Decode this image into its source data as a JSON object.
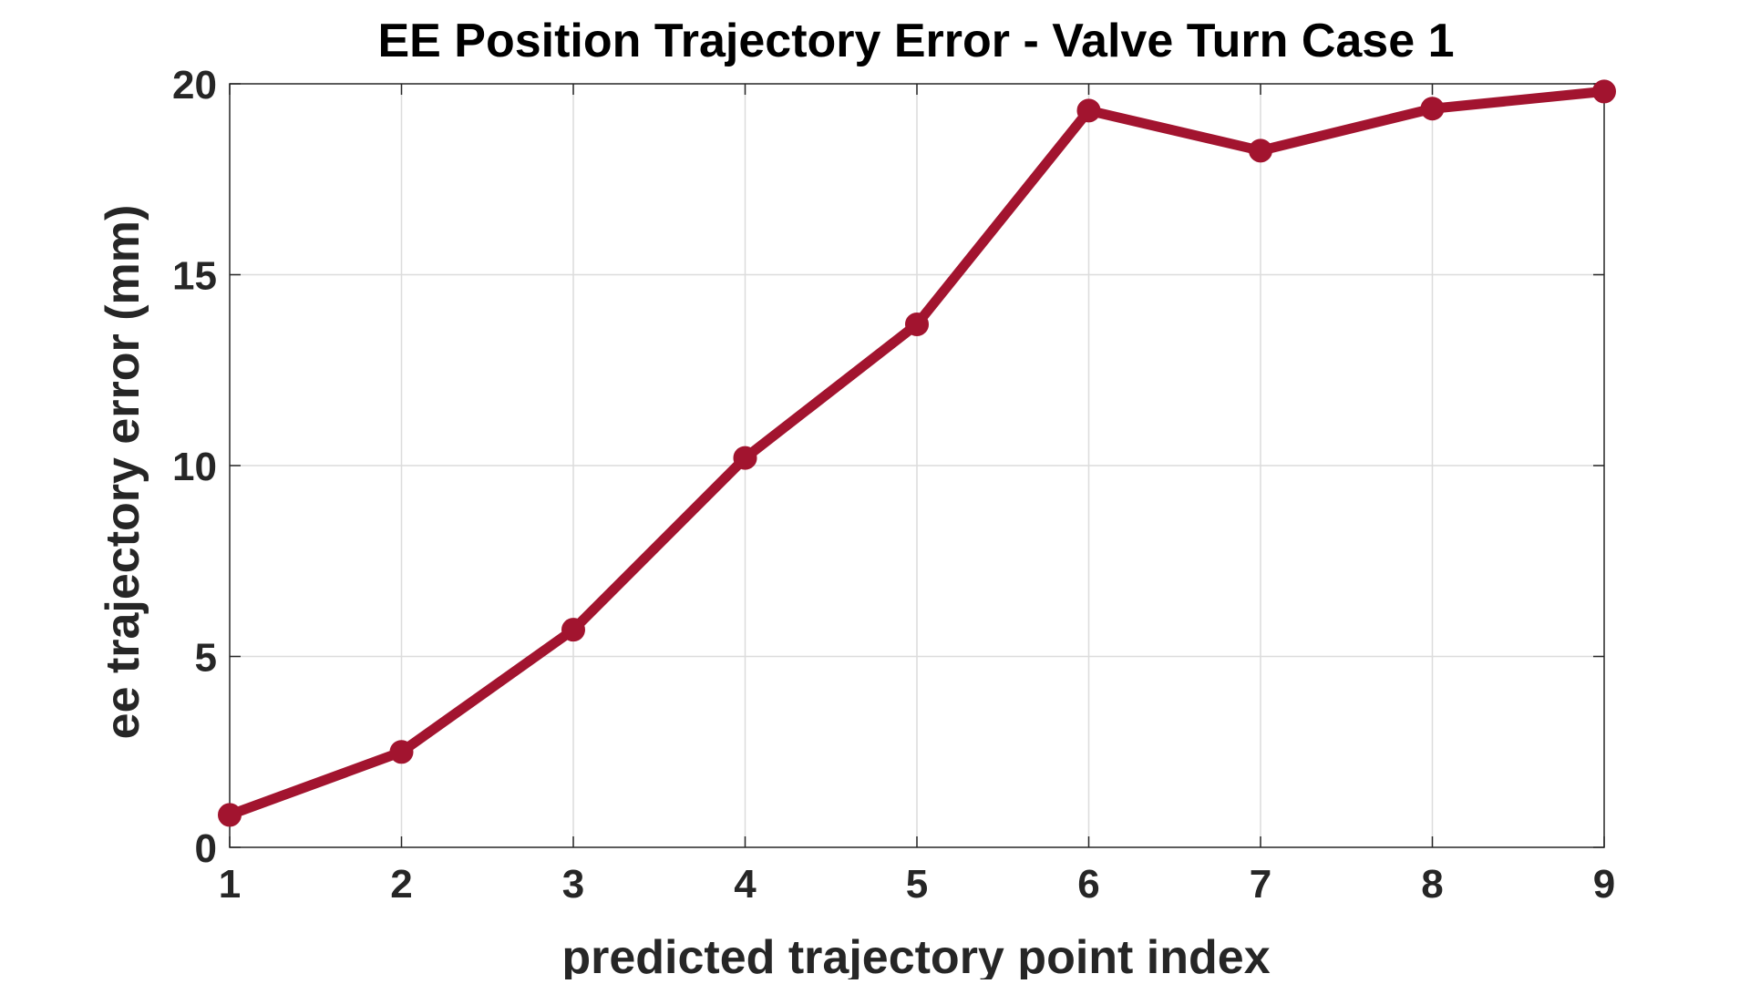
{
  "chart_data": {
    "type": "line",
    "title": "EE Position Trajectory Error - Valve Turn Case 1",
    "xlabel": "predicted trajectory point index",
    "ylabel": "ee trajectory error (mm)",
    "xlim": [
      1,
      9
    ],
    "ylim": [
      0,
      20
    ],
    "x_ticks": [
      1,
      2,
      3,
      4,
      5,
      6,
      7,
      8,
      9
    ],
    "y_ticks": [
      0,
      5,
      10,
      15,
      20
    ],
    "grid": true,
    "legend": "none",
    "series": [
      {
        "x": [
          1,
          2,
          3,
          4,
          5,
          6,
          7,
          8,
          9
        ],
        "values": [
          0.85,
          2.5,
          5.7,
          10.2,
          13.7,
          19.3,
          18.25,
          19.35,
          19.8
        ],
        "color": "#A2142F",
        "marker": "circle"
      }
    ],
    "colors": {
      "line": "#A2142F",
      "grid": "#dcdcdc",
      "axes": "#262626"
    }
  }
}
